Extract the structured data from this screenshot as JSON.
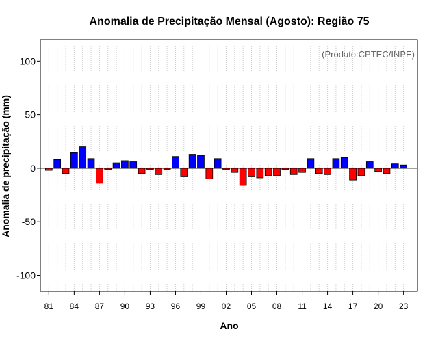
{
  "chart_data": {
    "type": "bar",
    "title": "Anomalia de Precipitação Mensal (Agosto): Região 75",
    "xlabel": "Ano",
    "ylabel": "Anomalia de precipitação (mm)",
    "annotation": "(Produto:CPTEC/INPE)",
    "ylim": [
      -115,
      120
    ],
    "yticks": [
      -100,
      -50,
      0,
      50,
      100
    ],
    "ytick_labels": [
      "-100",
      "-50",
      "0",
      "50",
      "100"
    ],
    "xticks": [
      1981,
      1984,
      1987,
      1990,
      1993,
      1996,
      1999,
      2002,
      2005,
      2008,
      2011,
      2014,
      2017,
      2020,
      2023
    ],
    "xtick_labels": [
      "81",
      "84",
      "87",
      "90",
      "93",
      "96",
      "99",
      "02",
      "05",
      "08",
      "11",
      "14",
      "17",
      "20",
      "23"
    ],
    "grid": "vertical dotted, one per year",
    "positive_color": "#0000ff",
    "negative_color": "#ff0000",
    "years": [
      1981,
      1982,
      1983,
      1984,
      1985,
      1986,
      1987,
      1988,
      1989,
      1990,
      1991,
      1992,
      1993,
      1994,
      1995,
      1996,
      1997,
      1998,
      1999,
      2000,
      2001,
      2002,
      2003,
      2004,
      2005,
      2006,
      2007,
      2008,
      2009,
      2010,
      2011,
      2012,
      2013,
      2014,
      2015,
      2016,
      2017,
      2018,
      2019,
      2020,
      2021,
      2022,
      2023
    ],
    "values": [
      -2,
      8,
      -5,
      15,
      20,
      9,
      -14,
      -1,
      5,
      7,
      6,
      -5,
      -1,
      -6,
      -1,
      11,
      -8,
      13,
      12,
      -10,
      9,
      -1,
      -4,
      -16,
      -8,
      -9,
      -7,
      -7,
      -1,
      -6,
      -4,
      9,
      -5,
      -6,
      9,
      10,
      -11,
      -7,
      6,
      -3,
      -5,
      4,
      3
    ]
  }
}
